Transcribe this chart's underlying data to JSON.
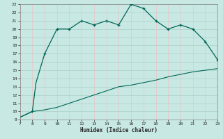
{
  "xlabel": "Humidex (Indice chaleur)",
  "xlim": [
    7,
    23
  ],
  "ylim": [
    9,
    23
  ],
  "xticks": [
    7,
    8,
    9,
    10,
    11,
    12,
    13,
    14,
    15,
    16,
    17,
    18,
    19,
    20,
    21,
    22,
    23
  ],
  "yticks": [
    9,
    10,
    11,
    12,
    13,
    14,
    15,
    16,
    17,
    18,
    19,
    20,
    21,
    22,
    23
  ],
  "bg_color": "#c8e8e4",
  "line_color": "#006655",
  "hgrid_color": "#b0d4cc",
  "vgrid_color": "#e8c8c8",
  "curve1_x": [
    7.0,
    8.0,
    8.3,
    8.7,
    9.0,
    9.5,
    10.0,
    11.0,
    12.0,
    13.0,
    14.0,
    15.0,
    16.0,
    17.0,
    18.0,
    19.0,
    20.0,
    21.0,
    22.0,
    23.0
  ],
  "curve1_y": [
    9.3,
    10.0,
    13.5,
    15.5,
    17.0,
    18.5,
    20.0,
    20.0,
    21.0,
    20.5,
    21.0,
    20.5,
    23.0,
    22.5,
    21.0,
    20.0,
    20.5,
    20.0,
    18.5,
    16.3
  ],
  "curve2_x": [
    7.0,
    8.0,
    9.0,
    10.0,
    11.0,
    12.0,
    13.0,
    14.0,
    15.0,
    16.0,
    17.0,
    18.0,
    19.0,
    20.0,
    21.0,
    22.0,
    23.0
  ],
  "curve2_y": [
    9.3,
    10.0,
    10.2,
    10.5,
    11.0,
    11.5,
    12.0,
    12.5,
    13.0,
    13.2,
    13.5,
    13.8,
    14.2,
    14.5,
    14.8,
    15.0,
    15.2
  ],
  "markers_x": [
    8,
    9,
    10,
    11,
    12,
    13,
    14,
    15,
    16,
    17,
    18,
    19,
    20,
    21,
    22,
    23
  ],
  "markers_y": [
    10.0,
    17.0,
    20.0,
    20.0,
    21.0,
    20.5,
    21.0,
    20.5,
    23.0,
    22.5,
    21.0,
    20.0,
    20.5,
    20.0,
    18.5,
    16.3
  ]
}
